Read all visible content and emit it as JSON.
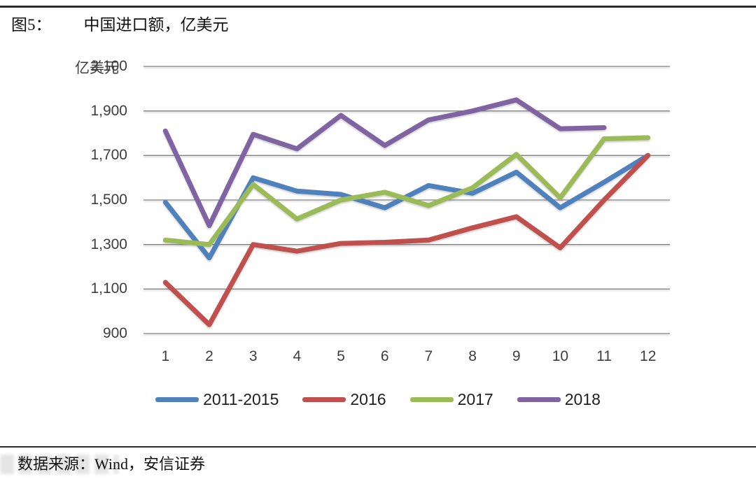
{
  "header": {
    "figure_label": "图5：",
    "title": "中国进口额，亿美元"
  },
  "footer": {
    "source_label": "数据来源：",
    "source_text": "Wind，安信证券"
  },
  "chart_data": {
    "type": "line",
    "title": "中国进口额，亿美元",
    "ylabel": "亿美元",
    "xlabel": "",
    "categories": [
      "1",
      "2",
      "3",
      "4",
      "5",
      "6",
      "7",
      "8",
      "9",
      "10",
      "11",
      "12"
    ],
    "series": [
      {
        "name": "2011-2015",
        "color": "#4F81BD",
        "values": [
          1490,
          1240,
          1600,
          1540,
          1525,
          1465,
          1565,
          1530,
          1625,
          1465,
          1580,
          1700
        ]
      },
      {
        "name": "2016",
        "color": "#C0504D",
        "values": [
          1130,
          940,
          1300,
          1270,
          1305,
          1310,
          1320,
          1375,
          1425,
          1285,
          1500,
          1700
        ]
      },
      {
        "name": "2017",
        "color": "#9BBB59",
        "values": [
          1320,
          1300,
          1570,
          1415,
          1500,
          1535,
          1475,
          1555,
          1705,
          1510,
          1775,
          1780
        ]
      },
      {
        "name": "2018",
        "color": "#8064A2",
        "values": [
          1810,
          1385,
          1795,
          1730,
          1880,
          1745,
          1860,
          1900,
          1950,
          1820,
          1825
        ]
      }
    ],
    "ylim": [
      900,
      2100
    ],
    "ytick_step": 200,
    "ytick_labels": [
      "900",
      "1,100",
      "1,300",
      "1,500",
      "1,700",
      "1,900",
      "2,100"
    ],
    "grid": "horizontal",
    "gridline_color": "#808080",
    "legend_position": "bottom"
  }
}
